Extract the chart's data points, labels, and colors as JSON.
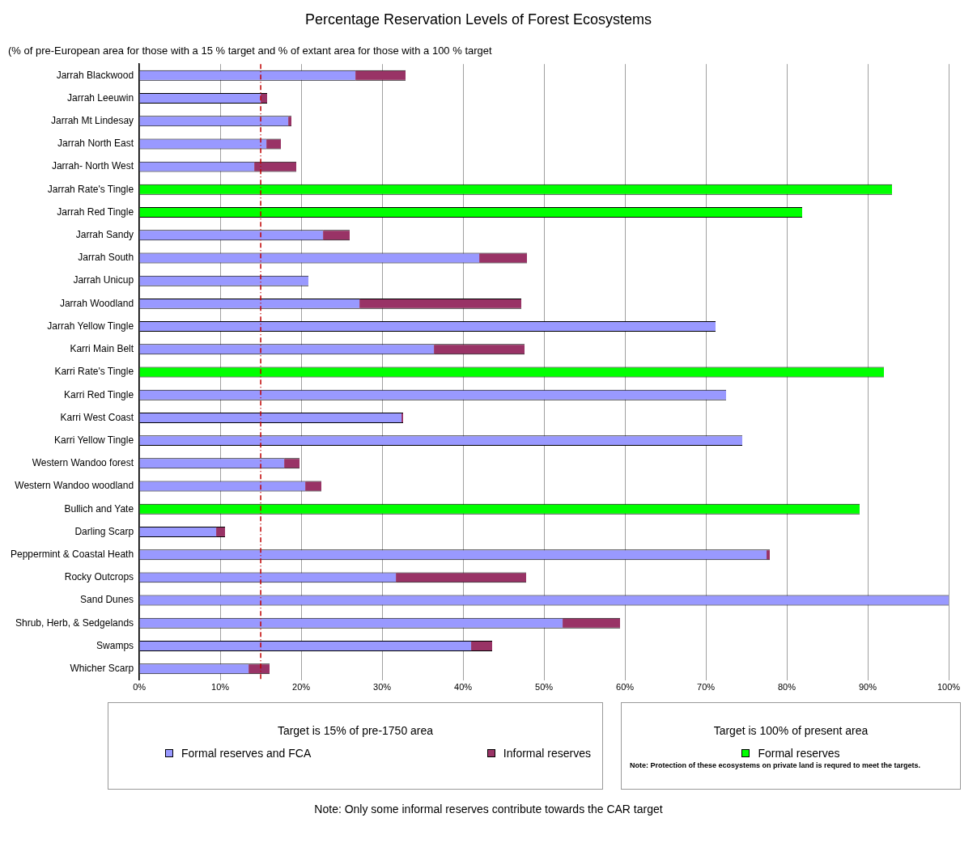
{
  "chart_data": {
    "type": "bar",
    "orientation": "horizontal",
    "stacked": true,
    "title": "Percentage Reservation Levels of Forest Ecosystems",
    "subtitle": "(% of pre-European area for those with a 15 % target and % of extant area for those with a 100 % target",
    "categories": [
      "Jarrah Blackwood",
      "Jarrah Leeuwin",
      "Jarrah Mt Lindesay",
      "Jarrah North East",
      "Jarrah- North West",
      "Jarrah Rate's Tingle",
      "Jarrah Red Tingle",
      "Jarrah Sandy",
      "Jarrah South",
      "Jarrah Unicup",
      "Jarrah Woodland",
      "Jarrah Yellow Tingle",
      "Karri Main Belt",
      "Karri Rate's Tingle",
      "Karri Red Tingle",
      "Karri West Coast",
      "Karri Yellow Tingle",
      "Western Wandoo forest",
      "Western Wandoo woodland",
      "Bullich and Yate",
      "Darling Scarp",
      "Peppermint & Coastal Heath",
      "Rocky Outcrops",
      "Sand Dunes",
      "Shrub, Herb, & Sedgelands",
      "Swamps",
      "Whicher Scarp"
    ],
    "series": [
      {
        "name": "Formal reserves and FCA",
        "color": "#9999ff",
        "values": [
          26.7,
          15.0,
          18.4,
          15.7,
          14.2,
          null,
          null,
          22.7,
          42.0,
          20.9,
          27.2,
          71.2,
          36.4,
          null,
          72.5,
          32.4,
          74.5,
          17.9,
          20.5,
          null,
          9.5,
          77.5,
          31.7,
          100,
          52.3,
          41.0,
          13.5
        ]
      },
      {
        "name": "Informal reserves",
        "color": "#993366",
        "values": [
          6.2,
          0.8,
          0.4,
          1.8,
          5.2,
          null,
          null,
          3.3,
          5.9,
          null,
          20.0,
          null,
          11.2,
          null,
          null,
          0.2,
          null,
          1.9,
          2.0,
          null,
          1.1,
          0.4,
          16.1,
          null,
          7.1,
          2.6,
          2.6
        ]
      },
      {
        "name": "Formal reserves",
        "color": "#00ff00",
        "values": [
          null,
          null,
          null,
          null,
          null,
          93.0,
          81.9,
          null,
          null,
          null,
          null,
          null,
          null,
          92.0,
          null,
          null,
          null,
          null,
          null,
          89.0,
          null,
          null,
          null,
          null,
          null,
          null,
          null
        ]
      }
    ],
    "xlim": [
      0,
      100
    ],
    "xticks": [
      {
        "value": 0,
        "label": "0%"
      },
      {
        "value": 10,
        "label": "10%"
      },
      {
        "value": 20,
        "label": "20%"
      },
      {
        "value": 30,
        "label": "30%"
      },
      {
        "value": 40,
        "label": "40%"
      },
      {
        "value": 50,
        "label": "50%"
      },
      {
        "value": 60,
        "label": "60%"
      },
      {
        "value": 70,
        "label": "70%"
      },
      {
        "value": 80,
        "label": "80%"
      },
      {
        "value": 90,
        "label": "90%"
      },
      {
        "value": 100,
        "label": "100%"
      }
    ],
    "grid": "x",
    "legend": "bottom",
    "ref_lines": [
      {
        "axis": "x",
        "value": 15,
        "color": "#c00000",
        "line_style": "dashed"
      }
    ],
    "annotations": [
      "Target is 15% of pre-1750 area",
      "Target is 100% of present area",
      "Note: Protection of these ecosystems on private land is requred to meet the targets.",
      "Note: Only some informal reserves contribute towards the CAR target"
    ]
  }
}
